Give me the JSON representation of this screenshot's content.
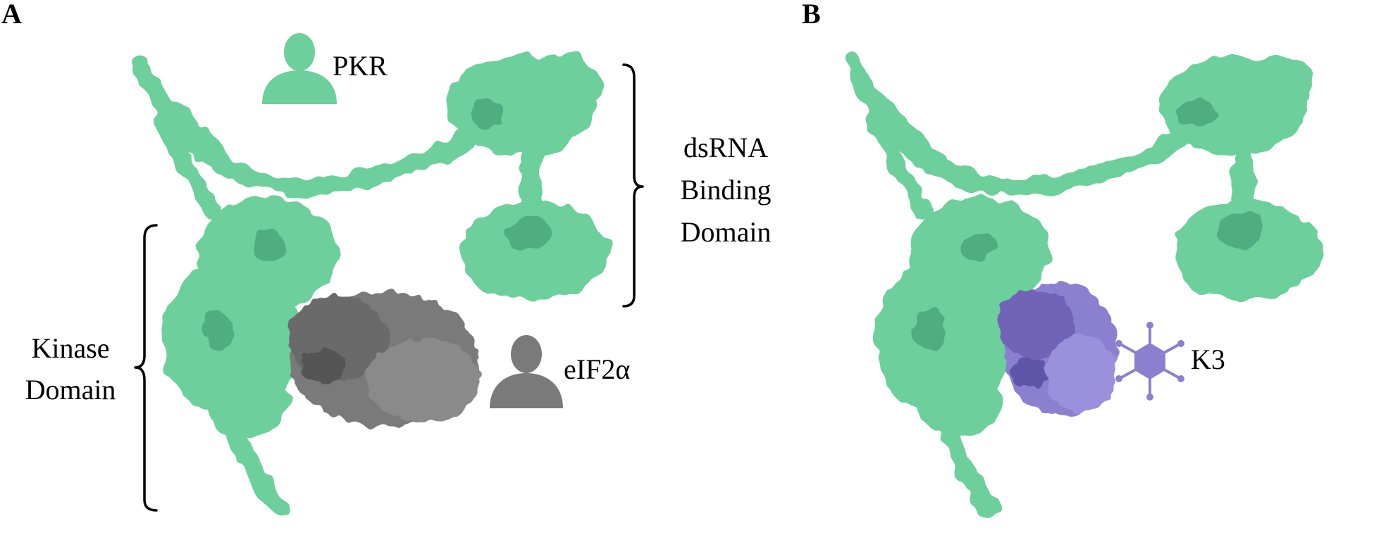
{
  "panels": [
    {
      "letter": "A",
      "labels": {
        "pkr": "PKR",
        "dsrna_line1": "dsRNA",
        "dsrna_line2": "Binding",
        "dsrna_line3": "Domain",
        "kinase_line1": "Kinase",
        "kinase_line2": "Domain",
        "partner": "eIF2α"
      }
    },
    {
      "letter": "B",
      "labels": {
        "partner": "K3"
      }
    }
  ],
  "colors": {
    "pkr": "#6dcf9c",
    "pkr_shadow": "#4fae7f",
    "eif2a": "#7a7a7a",
    "eif2a_shadow": "#555555",
    "k3": "#8b80cf",
    "k3_shadow": "#5e55a8"
  },
  "icons": {
    "pkr_icon": "person-icon",
    "eif2a_icon": "person-icon",
    "k3_icon": "virus-icon"
  }
}
